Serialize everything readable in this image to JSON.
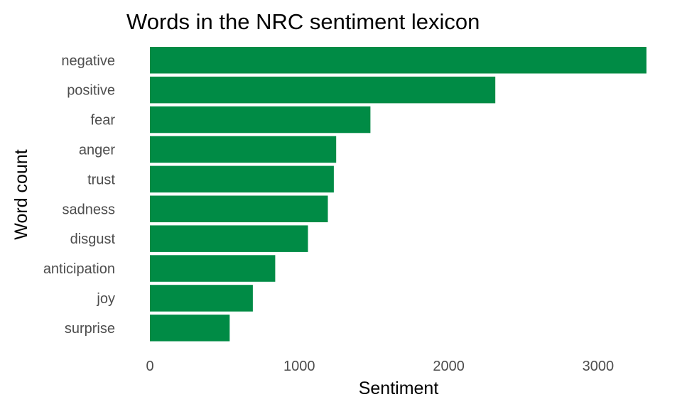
{
  "chart_data": {
    "type": "bar",
    "orientation": "horizontal",
    "title": "Words in the NRC sentiment lexicon",
    "xlabel": "Sentiment",
    "ylabel": "Word count",
    "categories": [
      "negative",
      "positive",
      "fear",
      "anger",
      "trust",
      "sadness",
      "disgust",
      "anticipation",
      "joy",
      "surprise"
    ],
    "values": [
      3324,
      2312,
      1476,
      1247,
      1231,
      1191,
      1058,
      839,
      689,
      534
    ],
    "xlim": [
      0,
      3324
    ],
    "xticks": [
      0,
      1000,
      2000,
      3000
    ],
    "bar_color": "#008b45",
    "grid": false,
    "legend": "none"
  }
}
